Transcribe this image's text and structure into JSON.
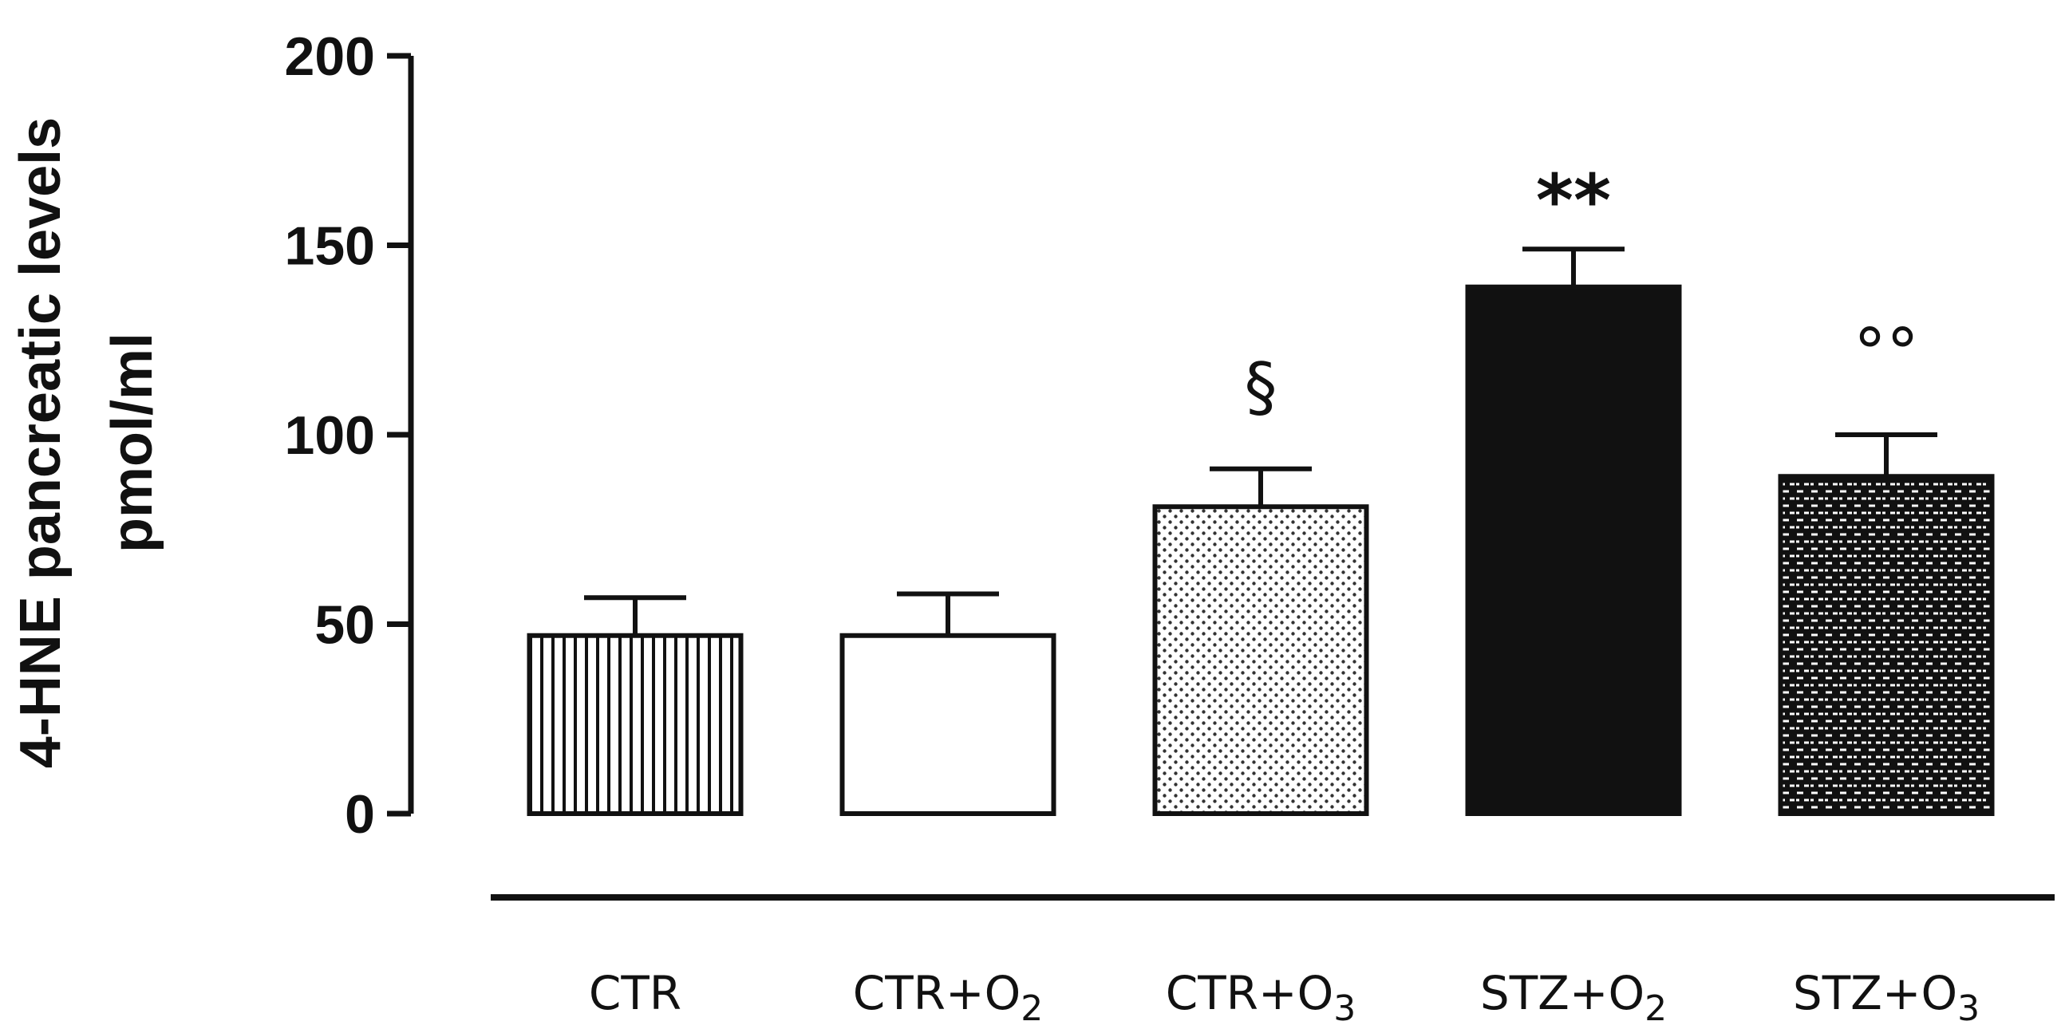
{
  "chart_data": {
    "type": "bar",
    "ylabel_line1": "4-HNE pancreatic levels",
    "ylabel_line2": "pmol/ml",
    "ylim": [
      0,
      200
    ],
    "yticks": [
      0,
      50,
      100,
      150,
      200
    ],
    "grid": false,
    "categories": [
      {
        "base": "CTR",
        "sub": ""
      },
      {
        "base": "CTR+O",
        "sub": "2"
      },
      {
        "base": "CTR+O",
        "sub": "3"
      },
      {
        "base": "STZ+O",
        "sub": "2"
      },
      {
        "base": "STZ+O",
        "sub": "3"
      }
    ],
    "values": [
      47,
      47,
      81,
      139,
      89
    ],
    "errors": [
      10,
      11,
      10,
      10,
      11
    ],
    "patterns": [
      "vertical-lines",
      "white",
      "dots",
      "black",
      "brick"
    ],
    "annotations": [
      "",
      "",
      "§",
      "**",
      "°°"
    ]
  }
}
